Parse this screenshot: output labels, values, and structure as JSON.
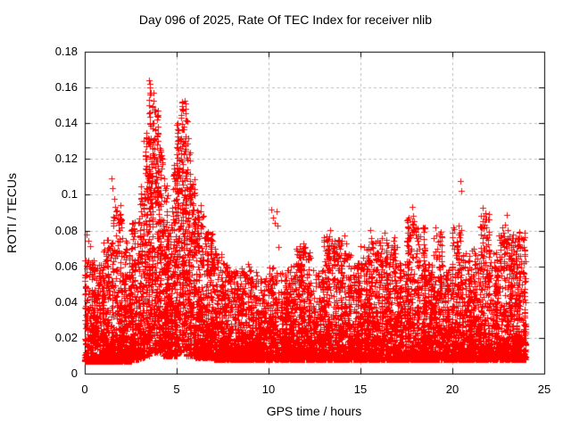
{
  "title": "Day 096 of 2025, Rate Of TEC Index for receiver nlib",
  "chart_data": {
    "type": "scatter",
    "title": "Day 096 of 2025, Rate Of TEC Index for receiver nlib",
    "xlabel": "GPS time / hours",
    "ylabel": "ROTI / TECUs",
    "xlim": [
      0,
      25
    ],
    "ylim": [
      0,
      0.18
    ],
    "xticks": [
      0,
      5,
      10,
      15,
      20,
      25
    ],
    "xtick_labels": [
      "0",
      "5",
      "10",
      "15",
      "20",
      "25"
    ],
    "yticks": [
      0,
      0.02,
      0.04,
      0.06,
      0.08,
      0.1,
      0.12,
      0.14,
      0.16,
      0.18
    ],
    "ytick_labels": [
      "0",
      "0.02",
      "0.04",
      "0.06",
      "0.08",
      "0.1",
      "0.12",
      "0.14",
      "0.16",
      "0.18"
    ],
    "grid": true,
    "grid_style": "dashed",
    "grid_color": "#bdbdbd",
    "axis_color": "#000000",
    "marker": "plus",
    "marker_color": "#ff0000",
    "marker_size_px": 7,
    "series_name": "ROTI",
    "data_time_range_hours": [
      0,
      24
    ],
    "peak_value": 0.164,
    "peak_time_hour": 3.5,
    "seed": 96,
    "bins_format": [
      "t_start_hour",
      "t_end_hour",
      "n_points",
      "y_base",
      "y_max",
      "concentration_exponent"
    ],
    "density_bins": [
      [
        0.0,
        0.5,
        230,
        0.007,
        0.065,
        3.2
      ],
      [
        0.5,
        1.0,
        230,
        0.007,
        0.062,
        3.2
      ],
      [
        1.0,
        1.5,
        230,
        0.007,
        0.075,
        3.2
      ],
      [
        1.5,
        2.0,
        240,
        0.007,
        0.095,
        3.0
      ],
      [
        2.0,
        2.5,
        240,
        0.007,
        0.075,
        3.0
      ],
      [
        2.5,
        3.0,
        250,
        0.008,
        0.088,
        2.8
      ],
      [
        3.0,
        3.25,
        130,
        0.009,
        0.105,
        2.2
      ],
      [
        3.25,
        3.5,
        130,
        0.01,
        0.135,
        1.9
      ],
      [
        3.5,
        3.75,
        140,
        0.012,
        0.163,
        1.5
      ],
      [
        3.75,
        4.0,
        140,
        0.012,
        0.148,
        1.5
      ],
      [
        4.0,
        4.25,
        130,
        0.012,
        0.132,
        1.7
      ],
      [
        4.25,
        4.5,
        130,
        0.01,
        0.11,
        2.0
      ],
      [
        4.5,
        4.75,
        125,
        0.01,
        0.085,
        2.4
      ],
      [
        4.75,
        5.0,
        125,
        0.01,
        0.118,
        2.0
      ],
      [
        5.0,
        5.25,
        135,
        0.012,
        0.14,
        1.6
      ],
      [
        5.25,
        5.5,
        135,
        0.012,
        0.153,
        1.6
      ],
      [
        5.5,
        5.75,
        130,
        0.01,
        0.143,
        1.8
      ],
      [
        5.75,
        6.0,
        130,
        0.01,
        0.11,
        2.2
      ],
      [
        6.0,
        6.5,
        250,
        0.009,
        0.092,
        2.6
      ],
      [
        6.5,
        7.0,
        240,
        0.009,
        0.08,
        2.8
      ],
      [
        7.0,
        7.5,
        230,
        0.008,
        0.068,
        3.0
      ],
      [
        7.5,
        8.0,
        230,
        0.008,
        0.062,
        3.2
      ],
      [
        8.0,
        8.5,
        220,
        0.008,
        0.058,
        3.2
      ],
      [
        8.5,
        9.0,
        220,
        0.008,
        0.062,
        3.2
      ],
      [
        9.0,
        9.5,
        210,
        0.008,
        0.058,
        3.2
      ],
      [
        9.5,
        10.0,
        210,
        0.008,
        0.054,
        3.2
      ],
      [
        10.0,
        10.5,
        210,
        0.008,
        0.06,
        3.0
      ],
      [
        10.5,
        11.0,
        210,
        0.008,
        0.058,
        3.2
      ],
      [
        11.0,
        11.5,
        210,
        0.008,
        0.062,
        3.2
      ],
      [
        11.5,
        12.0,
        220,
        0.008,
        0.072,
        3.0
      ],
      [
        12.0,
        12.5,
        220,
        0.008,
        0.068,
        3.0
      ],
      [
        12.5,
        13.0,
        210,
        0.008,
        0.058,
        3.2
      ],
      [
        13.0,
        13.5,
        220,
        0.008,
        0.078,
        3.0
      ],
      [
        13.5,
        14.0,
        220,
        0.008,
        0.075,
        3.0
      ],
      [
        14.0,
        14.5,
        210,
        0.008,
        0.068,
        3.0
      ],
      [
        14.5,
        15.0,
        210,
        0.008,
        0.062,
        3.2
      ],
      [
        15.0,
        15.5,
        220,
        0.008,
        0.072,
        3.0
      ],
      [
        15.5,
        16.0,
        220,
        0.008,
        0.075,
        3.0
      ],
      [
        16.0,
        16.5,
        220,
        0.008,
        0.078,
        3.0
      ],
      [
        16.5,
        17.0,
        220,
        0.008,
        0.082,
        3.0
      ],
      [
        17.0,
        17.5,
        210,
        0.008,
        0.063,
        3.2
      ],
      [
        17.5,
        18.0,
        230,
        0.008,
        0.088,
        2.9
      ],
      [
        18.0,
        18.5,
        230,
        0.008,
        0.082,
        2.9
      ],
      [
        18.5,
        19.0,
        210,
        0.008,
        0.063,
        3.2
      ],
      [
        19.0,
        19.5,
        210,
        0.008,
        0.08,
        3.0
      ],
      [
        19.5,
        20.0,
        210,
        0.008,
        0.058,
        3.2
      ],
      [
        20.0,
        20.5,
        220,
        0.008,
        0.082,
        3.0
      ],
      [
        20.5,
        21.0,
        215,
        0.008,
        0.068,
        3.1
      ],
      [
        21.0,
        21.5,
        215,
        0.008,
        0.072,
        3.1
      ],
      [
        21.5,
        22.0,
        220,
        0.008,
        0.09,
        3.0
      ],
      [
        22.0,
        22.5,
        215,
        0.008,
        0.068,
        3.1
      ],
      [
        22.5,
        23.0,
        215,
        0.008,
        0.085,
        3.0
      ],
      [
        23.0,
        23.5,
        220,
        0.008,
        0.078,
        3.0
      ],
      [
        23.5,
        24.0,
        230,
        0.008,
        0.08,
        2.9
      ]
    ],
    "outliers": [
      [
        0.12,
        0.078
      ],
      [
        0.18,
        0.0745
      ],
      [
        0.3,
        0.0715
      ],
      [
        1.45,
        0.109
      ],
      [
        1.5,
        0.1035
      ],
      [
        1.62,
        0.0975
      ],
      [
        1.66,
        0.093
      ],
      [
        1.7,
        0.089
      ],
      [
        2.05,
        0.076
      ],
      [
        2.55,
        0.084
      ],
      [
        3.2,
        0.13
      ],
      [
        3.28,
        0.124
      ],
      [
        3.5,
        0.164
      ],
      [
        3.55,
        0.16
      ],
      [
        3.6,
        0.157
      ],
      [
        3.48,
        0.1455
      ],
      [
        3.7,
        0.149
      ],
      [
        3.8,
        0.1475
      ],
      [
        4.15,
        0.125
      ],
      [
        4.2,
        0.118
      ],
      [
        5.25,
        0.143
      ],
      [
        5.28,
        0.152
      ],
      [
        5.33,
        0.147
      ],
      [
        5.4,
        0.138
      ],
      [
        6.3,
        0.094
      ],
      [
        6.45,
        0.0885
      ],
      [
        7.1,
        0.07
      ],
      [
        10.15,
        0.0915
      ],
      [
        10.22,
        0.0875
      ],
      [
        10.35,
        0.0845
      ],
      [
        10.45,
        0.0905
      ],
      [
        10.5,
        0.083
      ],
      [
        10.55,
        0.071
      ],
      [
        11.9,
        0.073
      ],
      [
        13.35,
        0.0805
      ],
      [
        13.45,
        0.0745
      ],
      [
        13.52,
        0.0705
      ],
      [
        13.85,
        0.072
      ],
      [
        14.15,
        0.0775
      ],
      [
        14.22,
        0.073
      ],
      [
        15.55,
        0.0805
      ],
      [
        15.6,
        0.076
      ],
      [
        16.3,
        0.079
      ],
      [
        17.5,
        0.086
      ],
      [
        17.55,
        0.082
      ],
      [
        17.8,
        0.093
      ],
      [
        17.85,
        0.0885
      ],
      [
        17.9,
        0.0855
      ],
      [
        18.0,
        0.082
      ],
      [
        19.1,
        0.082
      ],
      [
        20.35,
        0.083
      ],
      [
        20.4,
        0.079
      ],
      [
        20.45,
        0.1075
      ],
      [
        20.5,
        0.102
      ],
      [
        21.66,
        0.0927
      ],
      [
        21.72,
        0.0885
      ],
      [
        21.85,
        0.0715
      ],
      [
        22.97,
        0.089
      ],
      [
        23.0,
        0.0805
      ],
      [
        23.3,
        0.06
      ]
    ]
  }
}
